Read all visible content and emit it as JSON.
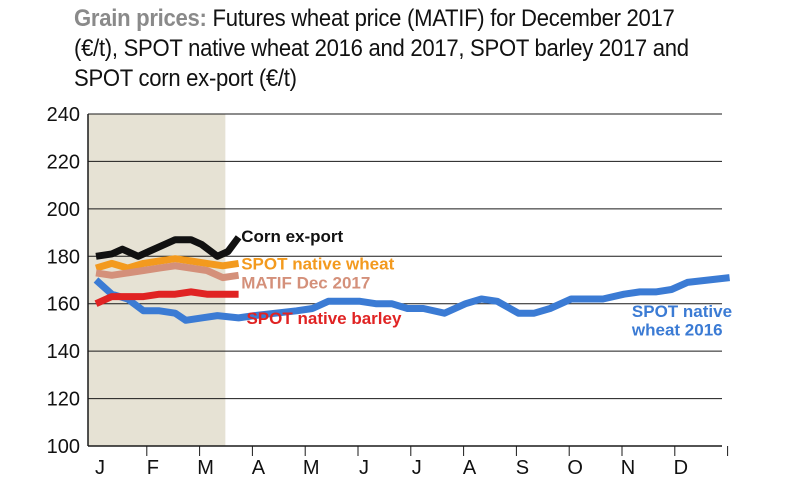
{
  "title": {
    "lead": "Grain prices:",
    "text": " Futures wheat price (MATIF) for December 2017 (€/t), SPOT native wheat 2016 and 2017, SPOT barley 2017 and SPOT corn ex-port (€/t)"
  },
  "chart_data": {
    "type": "line",
    "categories": [
      "J",
      "F",
      "M",
      "A",
      "M",
      "J",
      "J",
      "A",
      "S",
      "O",
      "N",
      "D"
    ],
    "ylim": [
      100,
      240
    ],
    "yticks": [
      100,
      120,
      140,
      160,
      180,
      200,
      220,
      240
    ],
    "grid": true,
    "shaded_period": [
      "J",
      "M"
    ],
    "series": [
      {
        "name": "SPOT native wheat 2016",
        "color": "#3b7bd4",
        "x": [
          0,
          0.3,
          0.6,
          0.9,
          1.2,
          1.5,
          1.7,
          2.0,
          2.3,
          2.7,
          3.0,
          3.4,
          3.8,
          4.1,
          4.4,
          4.7,
          5.0,
          5.3,
          5.6,
          5.9,
          6.2,
          6.6,
          7.0,
          7.3,
          7.6,
          8.0,
          8.3,
          8.6,
          9.0,
          9.3,
          9.6,
          10.0,
          10.3,
          10.6,
          10.9,
          11.2,
          11.6,
          12.0
        ],
        "y": [
          170,
          164,
          162,
          157,
          157,
          156,
          153,
          154,
          155,
          154,
          155,
          156,
          157,
          158,
          161,
          161,
          161,
          160,
          160,
          158,
          158,
          156,
          160,
          162,
          161,
          156,
          156,
          158,
          162,
          162,
          162,
          164,
          165,
          165,
          166,
          169,
          170,
          171
        ]
      },
      {
        "name": "Corn ex-port",
        "color": "#111111",
        "x": [
          0,
          0.3,
          0.5,
          0.8,
          1.0,
          1.3,
          1.5,
          1.8,
          2.0,
          2.3,
          2.5,
          2.7
        ],
        "y": [
          180,
          181,
          183,
          180,
          182,
          185,
          187,
          187,
          185,
          180,
          182,
          188
        ]
      },
      {
        "name": "SPOT native wheat",
        "color": "#f39a1e",
        "x": [
          0,
          0.3,
          0.6,
          0.9,
          1.2,
          1.5,
          1.8,
          2.1,
          2.4,
          2.7
        ],
        "y": [
          175,
          177,
          175,
          177,
          178,
          179,
          178,
          177,
          176,
          177
        ]
      },
      {
        "name": "MATIF Dec 2017",
        "color": "#d4907a",
        "x": [
          0,
          0.3,
          0.6,
          0.9,
          1.2,
          1.5,
          1.8,
          2.1,
          2.4,
          2.7
        ],
        "y": [
          173,
          172,
          173,
          174,
          175,
          176,
          175,
          174,
          171,
          172
        ]
      },
      {
        "name": "SPOT native barley",
        "color": "#e02323",
        "x": [
          0,
          0.3,
          0.6,
          0.9,
          1.2,
          1.5,
          1.8,
          2.1,
          2.4,
          2.7
        ],
        "y": [
          160,
          163,
          163,
          163,
          164,
          164,
          165,
          164,
          164,
          164
        ]
      }
    ],
    "labels": [
      {
        "text": "Corn ex-port",
        "color": "#111111",
        "x": 2.75,
        "y": 186
      },
      {
        "text": "SPOT native wheat",
        "color": "#f39a1e",
        "x": 2.75,
        "y": 174.5
      },
      {
        "text": "MATIF Dec 2017",
        "color": "#d4907a",
        "x": 2.75,
        "y": 166.5
      },
      {
        "text": "SPOT native barley",
        "color": "#e02323",
        "x": 2.85,
        "y": 151.5
      },
      {
        "text": "SPOT native",
        "color": "#3b7bd4",
        "x": 10.15,
        "y": 154.5
      },
      {
        "text": "wheat 2016",
        "color": "#3b7bd4",
        "x": 10.15,
        "y": 146.5
      }
    ]
  }
}
